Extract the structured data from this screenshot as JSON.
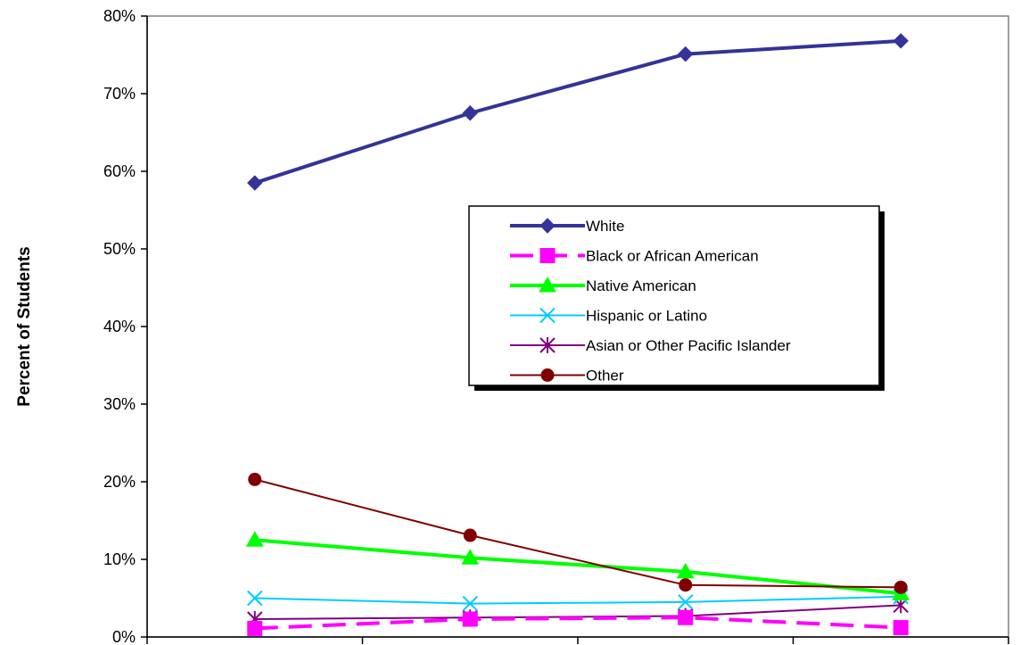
{
  "chart_data": {
    "type": "line",
    "title": "",
    "xlabel": "",
    "ylabel": "Percent of Students",
    "ylim": [
      0,
      80
    ],
    "yticks": [
      {
        "value": 0,
        "label": "0%"
      },
      {
        "value": 10,
        "label": "10%"
      },
      {
        "value": 20,
        "label": "20%"
      },
      {
        "value": 30,
        "label": "30%"
      },
      {
        "value": 40,
        "label": "40%"
      },
      {
        "value": 50,
        "label": "50%"
      },
      {
        "value": 60,
        "label": "60%"
      },
      {
        "value": 70,
        "label": "70%"
      },
      {
        "value": 80,
        "label": "80%"
      }
    ],
    "categories": [
      "",
      "",
      "",
      ""
    ],
    "grid": false,
    "legend_position": "center-right",
    "series": [
      {
        "name": "White",
        "values": [
          58.5,
          67.5,
          75.1,
          76.8
        ],
        "color": "#333399",
        "marker": "diamond",
        "dash": "solid",
        "width": 4
      },
      {
        "name": "Black or African American",
        "values": [
          1.1,
          2.3,
          2.5,
          1.2
        ],
        "color": "#FF00FF",
        "marker": "square",
        "dash": "dashed",
        "width": 4
      },
      {
        "name": "Native American",
        "values": [
          12.5,
          10.2,
          8.4,
          5.6
        ],
        "color": "#00FF00",
        "marker": "triangle",
        "dash": "solid",
        "width": 4
      },
      {
        "name": "Hispanic or Latino",
        "values": [
          5.0,
          4.3,
          4.5,
          5.2
        ],
        "color": "#00CCFF",
        "marker": "x",
        "dash": "solid",
        "width": 2
      },
      {
        "name": "Asian or Other Pacific Islander",
        "values": [
          2.3,
          2.5,
          2.7,
          4.1
        ],
        "color": "#800080",
        "marker": "star",
        "dash": "solid",
        "width": 2
      },
      {
        "name": "Other",
        "values": [
          20.3,
          13.1,
          6.7,
          6.4
        ],
        "color": "#800000",
        "marker": "circle",
        "dash": "solid",
        "width": 2
      }
    ]
  }
}
